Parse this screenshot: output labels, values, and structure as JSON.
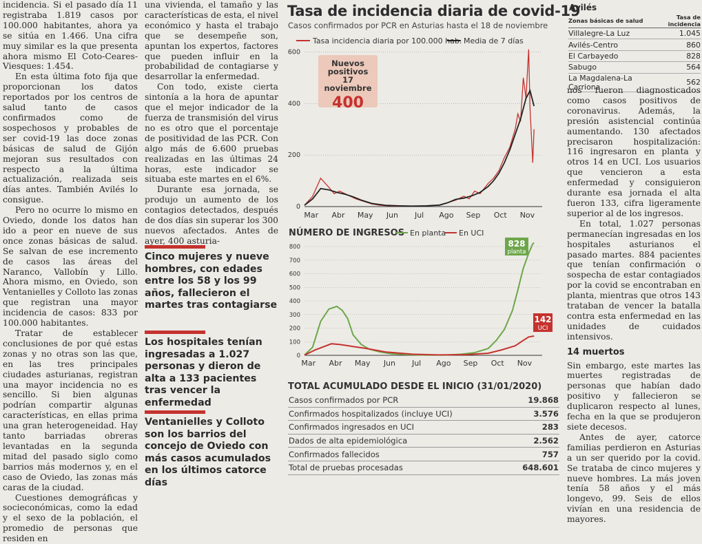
{
  "article": {
    "col1": [
      "incidencia. Si el pasado día 11 registraba 1.819 casos por 100.000 habitantes, ahora ya se sitúa en 1.466. Una cifra muy similar es la que presenta ahora mismo El Coto-Ceares-Viesques: 1.454.",
      "En esta última foto fija que proporcionan los datos reportados por los centros de salud tanto de casos confirmados como de sospechosos y probables de ser covid-19 las doce zonas básicas de salud de Gijón mejoran sus resultados con respecto a la última actualización, realizada seis días antes. También Avilés lo consigue.",
      "Pero no ocurre lo mismo en Oviedo, donde los datos han ido a peor en nueve de sus once zonas básicas de salud. Se salvan de ese incremento de casos las áreas del Naranco, Vallobín y Lillo. Ahora mismo, en Oviedo, son Ventanielles y Colloto las zonas que registran una mayor incidencia de casos: 833 por 100.000 habitantes.",
      "Tratar de establecer conclusiones de por qué estas zonas y no otras son las que, en las tres principales ciudades asturianas, registran una mayor incidencia no es sencillo. Si bien algunas podrían compartir algunas características, en ellas prima una gran heterogeneidad. Hay tanto barriadas obreras levantadas en la segunda mitad del pasado siglo como barrios más modernos y, en el caso de Oviedo, las zonas más caras de la ciudad.",
      "Cuestiones demográficas y socieconómicas, como la edad y el sexo de la población, el promedio de personas que residen en"
    ],
    "col2": [
      "una vivienda, el tamaño y las características de esta, el nivel económico y hasta el trabajo que se desempeñe son, apuntan los expertos, factores que pueden influir en la probabilidad de contagiarse y desarrollar la enfermedad.",
      "Con todo, existe cierta sintonía a la hora de apuntar que el mejor indicador de la fuerza de transmisión del virus no es otro que el porcentaje de positividad de las PCR. Con algo más de 6.600 pruebas realizadas en las últimas 24 horas, este indicador se situaba este martes en el 6%.",
      "Durante esa jornada, se produjo un aumento de los contagios detectados, después de dos días sin superar los 300 nuevos afectados. Antes de ayer, 400 asturia-"
    ],
    "col3_top": "nos fueron diagnosticados como casos positivos de coronavirus. Además, la presión asistencial continúa aumentando. 130 afectados precisaron hospitalización: 116 ingresaron en planta y otros 14 en UCI. Los usuarios que vencieron a esta enfermedad y consiguieron durante esa jornada el alta fueron 133, cifra ligeramente superior al de los ingresos.",
    "col3_p2": "En total, 1.027 personas permanecían ingresadas en los hospitales asturianos el pasado martes. 884 pacientes que tenían confirmación o sospecha de estar contagiados por la covid se encontraban en planta, mientras que otros 143 trataban de vencer la batalla contra esta enfermedad en las unidades de cuidados intensivos.",
    "col3_heading": "14 muertos",
    "col3_p3": "Sin embargo, este martes las muertes registradas de personas que habían dado positivo y fallecieron se duplicaron respecto al lunes, fecha en la que se produjeron siete decesos.",
    "col3_p4": "Antes de ayer, catorce familias perdieron en Asturias a un ser querido por la covid. Se trataba de cinco mujeres y nueve hombres. La más joven tenía 58 años y el más longevo, 99. Seis de ellos vivían en una residencia de mayores."
  },
  "pull_quotes": [
    "Cinco mujeres y nueve hombres, con edades entre los 58 y los 99 años, fallecieron el martes tras contagiarse",
    "Los hospitales tenían ingresadas a 1.027 personas y dieron de alta a 133 pacientes tras vencer la enfermedad",
    "Ventanielles y Colloto son los barrios del concejo de Oviedo con más casos acumulados en los últimos catorce días"
  ],
  "infographic": {
    "title": "Tasa de incidencia diaria de covid-19",
    "subtitle": "Casos confirmados por PCR en Asturias hasta el 18 de noviembre",
    "badge": {
      "label1": "Nuevos",
      "label2": "positivos",
      "label3": "17 noviembre",
      "value": "400"
    },
    "section2_title": "NÚMERO DE INGRESOS",
    "planta_callout": {
      "value": "828",
      "label": "planta"
    },
    "uci_callout": {
      "value": "142",
      "label": "UCI"
    },
    "table_title": "TOTAL ACUMULADO DESDE EL INICIO (31/01/2020)",
    "table_rows": [
      {
        "label": "Casos confirmados por PCR",
        "value": "19.868"
      },
      {
        "label": "Confirmados hospitalizados (incluye UCI)",
        "value": "3.576"
      },
      {
        "label": "Confirmados ingresados en UCI",
        "value": "283"
      },
      {
        "label": "Dados de alta epidemiológica",
        "value": "2.562"
      },
      {
        "label": "Confirmados fallecidos",
        "value": "757"
      },
      {
        "label": "Total de pruebas procesadas",
        "value": "648.601"
      }
    ]
  },
  "aviles": {
    "title": "Avilés",
    "col_zone": "Zonas básicas de salud",
    "col_rate": "Tasa de incidencia",
    "rows": [
      {
        "zone": "Villalegre-La Luz",
        "rate": "1.045"
      },
      {
        "zone": "Avilés-Centro",
        "rate": "860"
      },
      {
        "zone": "El Carbayedo",
        "rate": "828"
      },
      {
        "zone": "Sabugo",
        "rate": "564"
      },
      {
        "zone": "La Magdalena-La Carriona",
        "rate": "562"
      }
    ]
  },
  "chart_data": [
    {
      "type": "line",
      "title": "Tasa de incidencia diaria de covid-19",
      "x_labels": [
        "Mar",
        "Abr",
        "May",
        "Jun",
        "Jul",
        "Ago",
        "Sep",
        "Oct",
        "Nov"
      ],
      "y_ticks": [
        0,
        200,
        400,
        600
      ],
      "ylim": [
        0,
        620
      ],
      "legend": [
        "Tasa incidencia diaria por 100.000 hab.",
        "Media de 7 días"
      ],
      "colors": {
        "daily": "#c5322e",
        "avg": "#222222"
      },
      "series": [
        {
          "name": "Tasa incidencia diaria por 100.000 hab.",
          "months": [
            0,
            0.3,
            0.6,
            0.9,
            1.1,
            1.3,
            1.6,
            1.9,
            2.2,
            2.5,
            2.8,
            3.1,
            3.5,
            4.0,
            4.5,
            5.0,
            5.3,
            5.6,
            5.9,
            6.1,
            6.3,
            6.5,
            6.8,
            7.0,
            7.2,
            7.4,
            7.6,
            7.8,
            7.9,
            8.0,
            8.1,
            8.2,
            8.3,
            8.35,
            8.45,
            8.5
          ],
          "values": [
            5,
            40,
            110,
            75,
            50,
            60,
            45,
            30,
            20,
            10,
            5,
            3,
            2,
            2,
            3,
            5,
            15,
            25,
            40,
            30,
            60,
            50,
            90,
            110,
            140,
            190,
            230,
            300,
            360,
            330,
            500,
            420,
            610,
            380,
            170,
            300
          ]
        },
        {
          "name": "Media de 7 días",
          "months": [
            0,
            0.3,
            0.6,
            0.9,
            1.2,
            1.5,
            1.8,
            2.1,
            2.5,
            3.0,
            3.5,
            4.0,
            4.5,
            5.0,
            5.3,
            5.6,
            5.9,
            6.2,
            6.5,
            6.8,
            7.0,
            7.2,
            7.4,
            7.6,
            7.8,
            8.0,
            8.2,
            8.35,
            8.5
          ],
          "values": [
            5,
            30,
            70,
            65,
            55,
            48,
            38,
            25,
            12,
            5,
            3,
            2,
            3,
            6,
            15,
            28,
            33,
            42,
            55,
            78,
            100,
            130,
            170,
            220,
            280,
            340,
            420,
            450,
            390
          ]
        }
      ]
    },
    {
      "type": "area",
      "title": "NÚMERO DE INGRESOS",
      "x_labels": [
        "Mar",
        "Abr",
        "May",
        "Jun",
        "Jul",
        "Ago",
        "Sep",
        "Oct",
        "Nov"
      ],
      "y_ticks": [
        0,
        100,
        200,
        300,
        400,
        500,
        600,
        700,
        800
      ],
      "ylim": [
        0,
        850
      ],
      "legend": [
        "En planta",
        "En UCI"
      ],
      "colors": {
        "planta": "#6da64a",
        "uci": "#c5322e"
      },
      "series": [
        {
          "name": "En planta",
          "months": [
            0,
            0.3,
            0.6,
            0.9,
            1.2,
            1.4,
            1.6,
            1.8,
            2.1,
            2.4,
            2.8,
            3.2,
            3.8,
            4.5,
            5.2,
            5.8,
            6.3,
            6.8,
            7.1,
            7.4,
            7.7,
            7.9,
            8.0,
            8.1,
            8.3,
            8.45,
            8.5
          ],
          "values": [
            2,
            60,
            250,
            340,
            360,
            330,
            270,
            150,
            80,
            45,
            25,
            12,
            5,
            2,
            2,
            8,
            20,
            50,
            110,
            190,
            330,
            480,
            560,
            640,
            750,
            820,
            828
          ]
        },
        {
          "name": "En UCI",
          "months": [
            0,
            0.4,
            1.0,
            1.3,
            1.8,
            2.3,
            3.0,
            4.0,
            5.0,
            6.0,
            6.8,
            7.3,
            7.8,
            8.1,
            8.3,
            8.5
          ],
          "values": [
            2,
            40,
            85,
            80,
            65,
            50,
            25,
            8,
            3,
            5,
            15,
            40,
            70,
            110,
            135,
            142
          ]
        }
      ]
    }
  ]
}
